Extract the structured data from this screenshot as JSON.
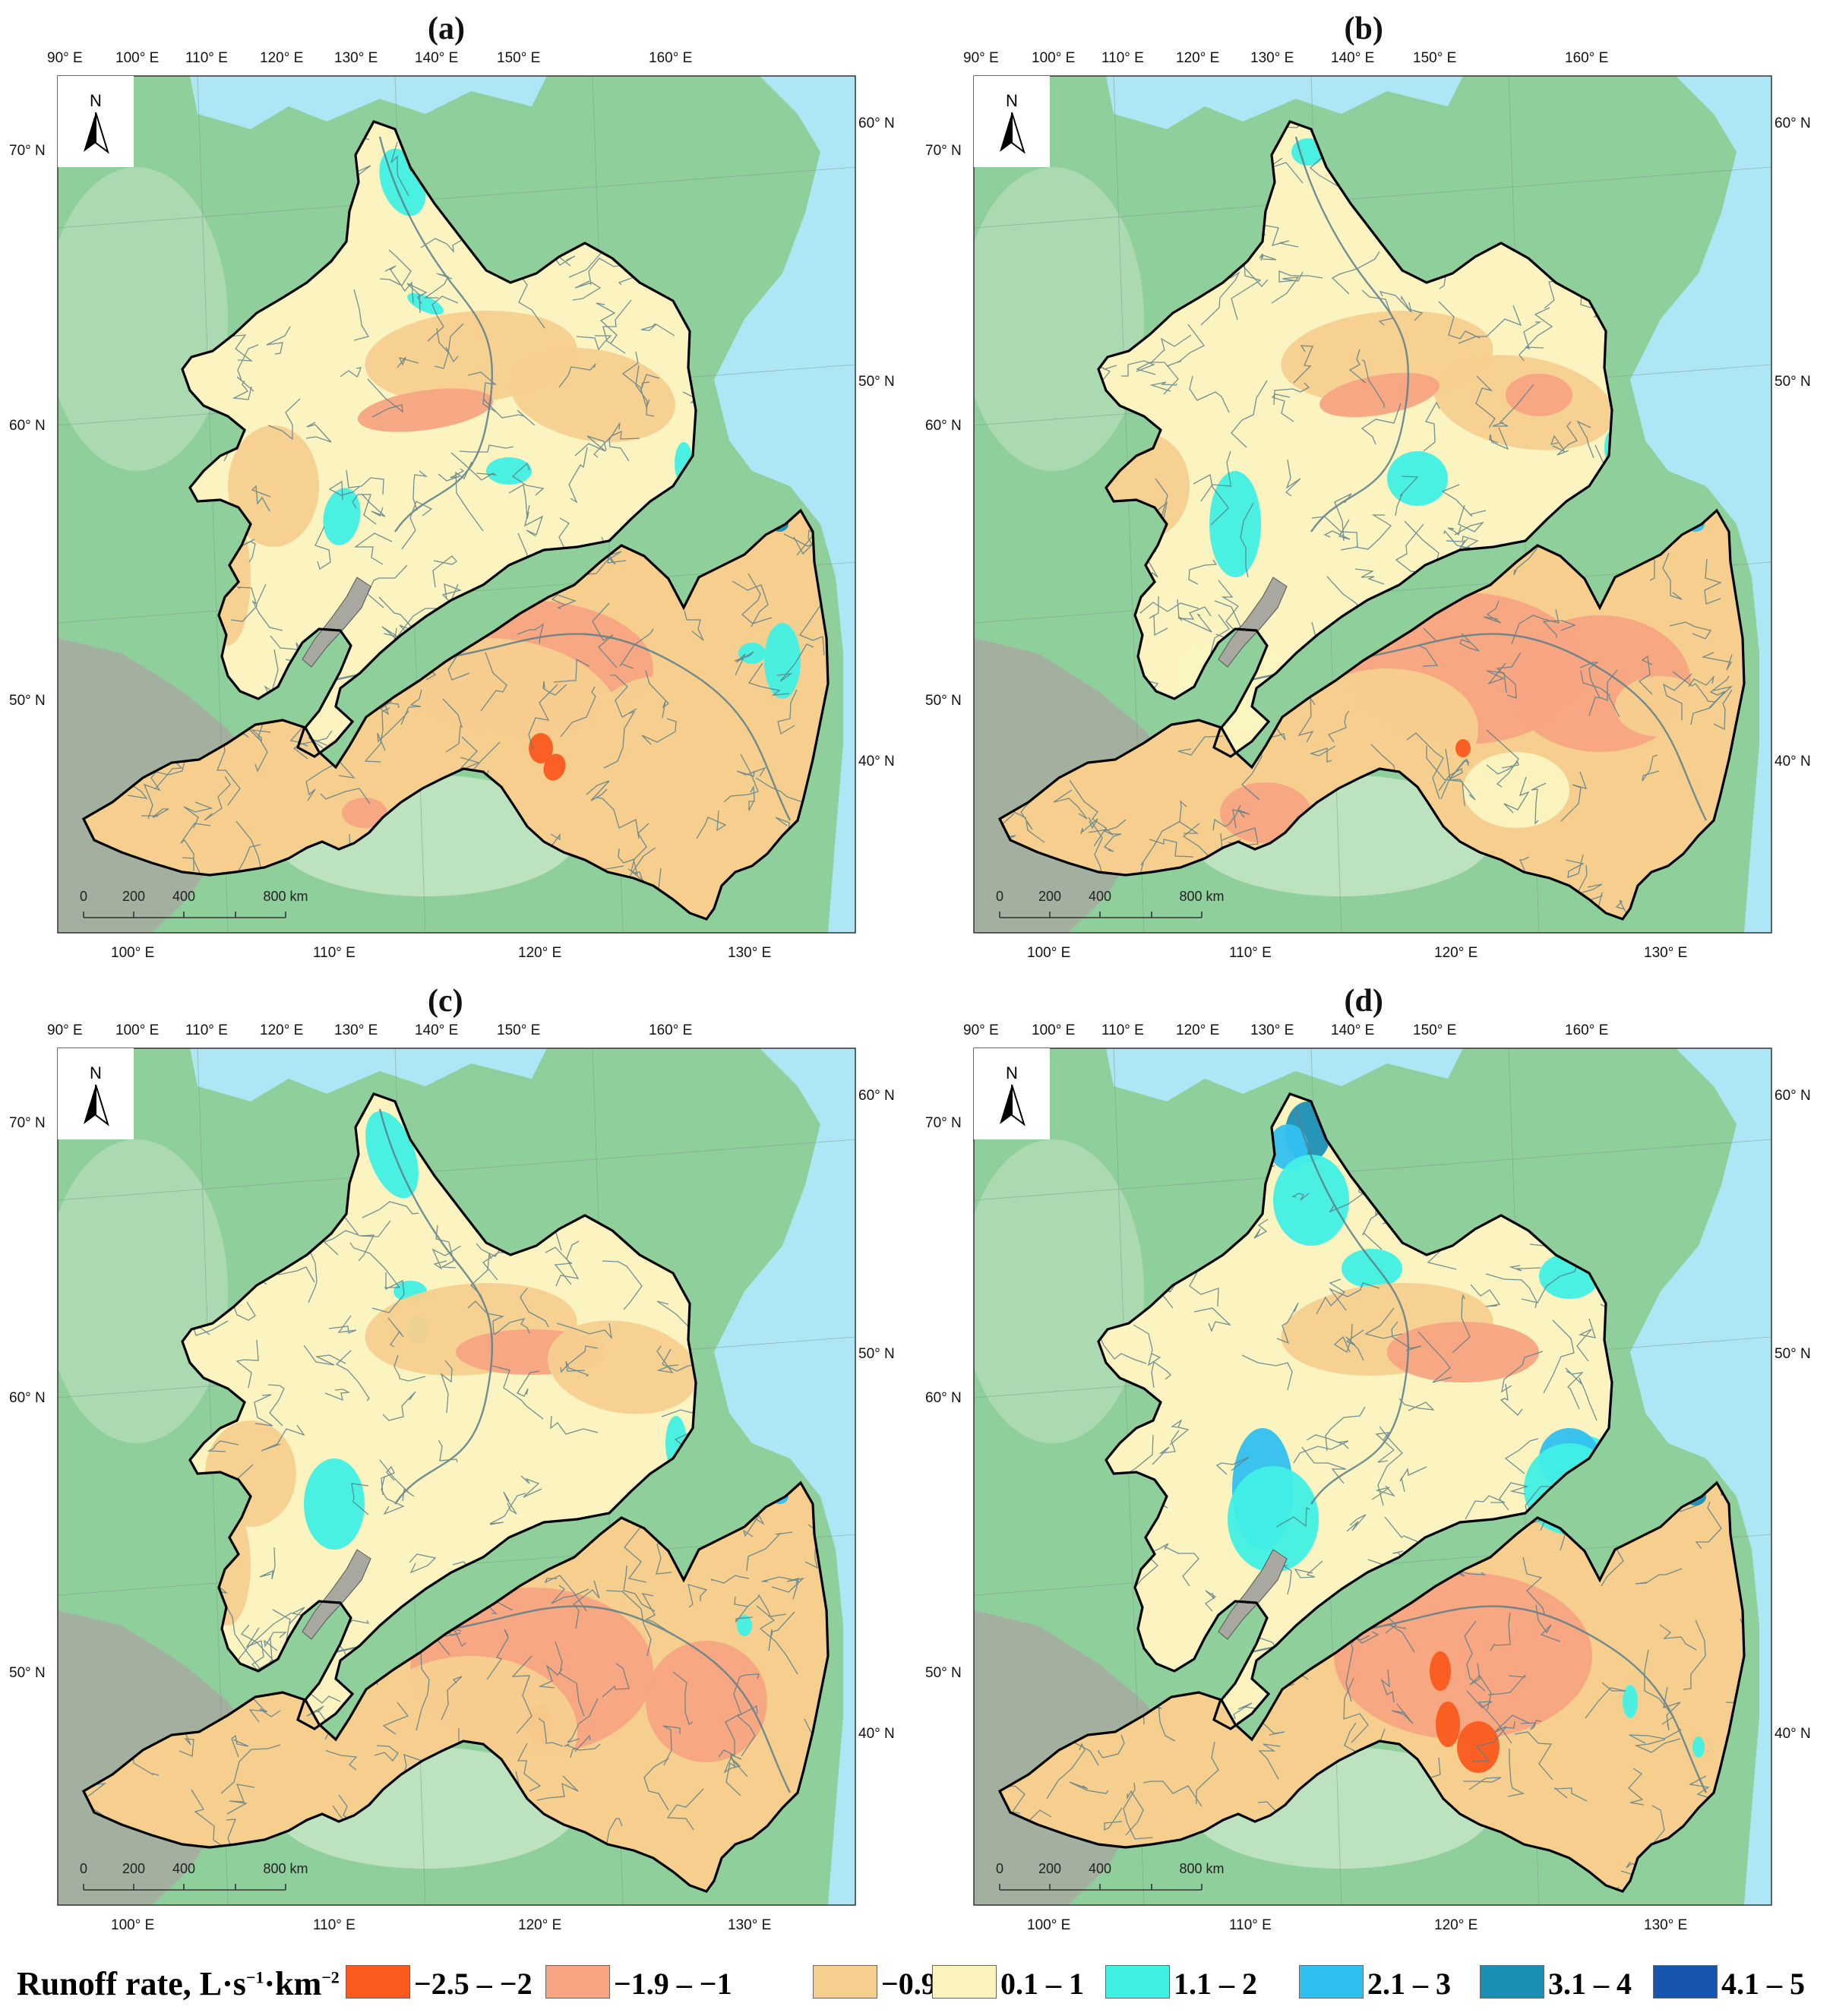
{
  "panels": [
    {
      "label": "(a)"
    },
    {
      "label": "(b)"
    },
    {
      "label": "(c)"
    },
    {
      "label": "(d)"
    }
  ],
  "top_lon_labels": [
    "90° E",
    "100° E",
    "110° E",
    "120° E",
    "130° E",
    "140° E",
    "150° E",
    "160° E"
  ],
  "bottom_lon_labels": [
    "100° E",
    "110° E",
    "120° E",
    "130° E"
  ],
  "left_lat_labels": [
    "70° N",
    "60° N",
    "50° N"
  ],
  "right_lat_labels": [
    "60° N",
    "50° N",
    "40° N"
  ],
  "north_arrow": {
    "label": "N",
    "icon": "north-arrow-icon"
  },
  "scale_bar": {
    "labels": [
      "0",
      "200",
      "400",
      "800 km"
    ]
  },
  "legend": {
    "title_main": "Runoff rate, L",
    "title_sep1": "·",
    "title_s": "s",
    "title_sup1": "−1",
    "title_sep2": "·",
    "title_km": "km",
    "title_sup2": "−2",
    "items": [
      {
        "label": "−2.5 – −2",
        "color": "#fa5a1e"
      },
      {
        "label": "−1.9 – −1",
        "color": "#f7a482"
      },
      {
        "label": "−0.9 – 0",
        "color": "#f6cf8e"
      },
      {
        "label": "0.1 – 1",
        "color": "#fbf4c0"
      },
      {
        "label": "1.1 – 2",
        "color": "#40f0e4"
      },
      {
        "label": "2.1 – 3",
        "color": "#30c0f0"
      },
      {
        "label": "3.1 – 4",
        "color": "#1a8fb6"
      },
      {
        "label": "4.1 – 5",
        "color": "#1656b0"
      }
    ]
  },
  "colors": {
    "land_green": "#8fcf9c",
    "land_light": "#c8e6c8",
    "mountain_grey": "#a8a8a0",
    "sea": "#aee6f5",
    "river": "#5a7e8a",
    "basin_border": "#000000"
  }
}
